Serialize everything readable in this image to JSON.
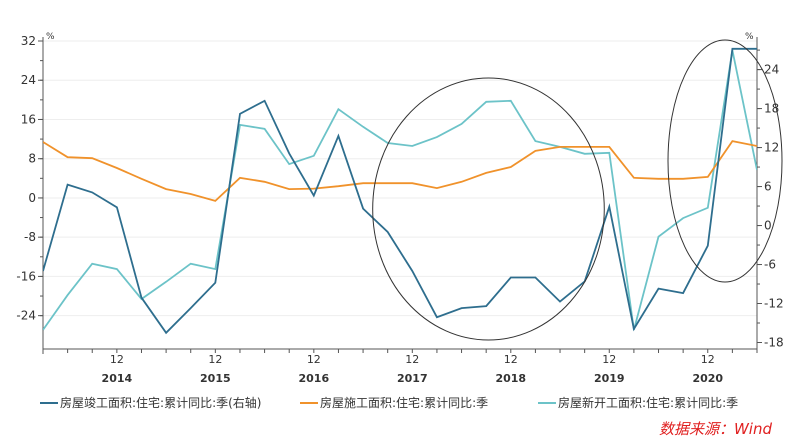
{
  "chart_data": {
    "type": "line",
    "title": "",
    "unit_left": "%",
    "unit_right": "%",
    "x": [
      "2014-03",
      "2014-06",
      "2014-09",
      "2014-12",
      "2015-03",
      "2015-06",
      "2015-09",
      "2015-12",
      "2016-03",
      "2016-06",
      "2016-09",
      "2016-12",
      "2017-03",
      "2017-06",
      "2017-09",
      "2017-12",
      "2018-03",
      "2018-06",
      "2018-09",
      "2018-12",
      "2019-03",
      "2019-06",
      "2019-09",
      "2019-12",
      "2020-03",
      "2020-06",
      "2020-09",
      "2020-12",
      "2021-03",
      "2021-06"
    ],
    "x_tick_labels": [
      {
        "month": "12",
        "year": "2014"
      },
      {
        "month": "12",
        "year": "2015"
      },
      {
        "month": "12",
        "year": "2016"
      },
      {
        "month": "12",
        "year": "2017"
      },
      {
        "month": "12",
        "year": "2018"
      },
      {
        "month": "12",
        "year": "2019"
      },
      {
        "month": "12",
        "year": "2020"
      }
    ],
    "y_left": {
      "ticks": [
        32,
        24,
        16,
        8,
        0,
        -8,
        -16,
        -24
      ],
      "range": [
        -30.8,
        32
      ]
    },
    "y_right": {
      "ticks": [
        24,
        18,
        12,
        6,
        0,
        -6,
        -12,
        -18
      ],
      "range": [
        -19,
        28.4
      ]
    },
    "grid": true,
    "legend_position": "bottom",
    "series": [
      {
        "name": "房屋竣工面积:住宅:累计同比:季(右轴)",
        "axis": "right",
        "color": "#2e6e8e",
        "values": [
          -7.0,
          6.3,
          5.1,
          2.8,
          -11.1,
          -16.5,
          -12.7,
          -8.8,
          17.2,
          19.2,
          11.1,
          4.6,
          13.8,
          2.6,
          -1.0,
          -7.0,
          -14.1,
          -12.7,
          -12.4,
          -8.0,
          -8.0,
          -11.7,
          -8.6,
          2.9,
          -15.9,
          -9.7,
          -10.4,
          -3.1,
          27.2,
          27.2
        ]
      },
      {
        "name": "房屋施工面积:住宅:累计同比:季",
        "axis": "left",
        "color": "#f0922b",
        "values": [
          11.4,
          8.3,
          8.1,
          6.1,
          3.9,
          1.8,
          0.8,
          -0.6,
          4.1,
          3.3,
          1.8,
          1.9,
          2.4,
          3.0,
          3.0,
          3.0,
          2.0,
          3.3,
          5.1,
          6.3,
          9.6,
          10.4,
          10.4,
          10.4,
          4.1,
          3.9,
          3.9,
          4.3,
          11.6,
          10.6
        ]
      },
      {
        "name": "房屋新开工面积:住宅:累计同比:季",
        "axis": "left",
        "color": "#6cc3c8",
        "values": [
          -26.9,
          -19.8,
          -13.4,
          -14.5,
          -20.6,
          -17.1,
          -13.4,
          -14.5,
          14.9,
          14.1,
          6.9,
          8.6,
          18.1,
          14.5,
          11.2,
          10.6,
          12.4,
          15.1,
          19.6,
          19.8,
          11.6,
          10.4,
          9.0,
          9.2,
          -26.9,
          -7.9,
          -4.1,
          -2.0,
          30.1,
          5.7
        ]
      }
    ],
    "annotations": [
      {
        "type": "ellipse",
        "from": "2017-09",
        "to": "2019-12"
      },
      {
        "type": "ellipse",
        "from": "2020-09",
        "to": "2021-06"
      }
    ]
  },
  "source": "数据来源：Wind"
}
